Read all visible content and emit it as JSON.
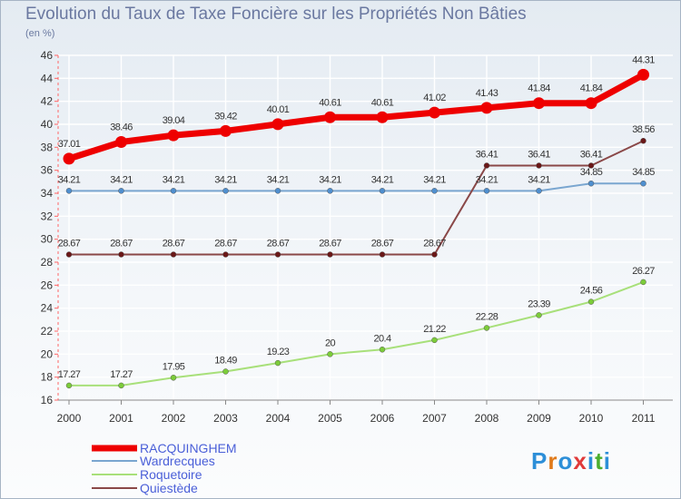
{
  "title": "Evolution du Taux de Taxe Foncière sur les Propriétés Non Bâties",
  "subtitle": "(en %)",
  "logo_text": "Proxiti",
  "chart_data": {
    "type": "line",
    "title": "Evolution du Taux de Taxe Foncière sur les Propriétés Non Bâties",
    "ylabel": "(en %)",
    "xlabel": "",
    "ylim": [
      16,
      46
    ],
    "yticks": [
      16,
      18,
      20,
      22,
      24,
      26,
      28,
      30,
      32,
      34,
      36,
      38,
      40,
      42,
      44,
      46
    ],
    "categories": [
      "2000",
      "2001",
      "2002",
      "2003",
      "2004",
      "2005",
      "2006",
      "2007",
      "2008",
      "2009",
      "2010",
      "2011"
    ],
    "series": [
      {
        "name": "RACQUINGHEM",
        "color": "#ee0000",
        "marker": "#ee0000",
        "width": 7,
        "values": [
          37.01,
          38.46,
          39.04,
          39.42,
          40.01,
          40.61,
          40.61,
          41.02,
          41.43,
          41.84,
          41.84,
          44.31
        ],
        "labels": [
          "37.01",
          "38.46",
          "39.04",
          "39.42",
          "40.01",
          "40.61",
          "40.61",
          "41.02",
          "41.43",
          "41.84",
          "41.84",
          "44.31"
        ]
      },
      {
        "name": "Wardrecques",
        "color": "#7aa6d0",
        "marker": "#4f8fcf",
        "width": 2,
        "values": [
          34.21,
          34.21,
          34.21,
          34.21,
          34.21,
          34.21,
          34.21,
          34.21,
          34.21,
          34.21,
          34.85,
          34.85
        ],
        "labels": [
          "34.21",
          "34.21",
          "34.21",
          "34.21",
          "34.21",
          "34.21",
          "34.21",
          "34.21",
          "34.21",
          "34.21",
          "34.85",
          "34.85"
        ]
      },
      {
        "name": "Roquetoire",
        "color": "#a8e07a",
        "marker": "#7ccc3a",
        "width": 2,
        "values": [
          17.27,
          17.27,
          17.95,
          18.49,
          19.23,
          20,
          20.4,
          21.22,
          22.28,
          23.39,
          24.56,
          26.27
        ],
        "labels": [
          "17.27",
          "17.27",
          "17.95",
          "18.49",
          "19.23",
          "20",
          "20.4",
          "21.22",
          "22.28",
          "23.39",
          "24.56",
          "26.27"
        ]
      },
      {
        "name": "Quiestède",
        "color": "#8a4848",
        "marker": "#6a1818",
        "width": 2,
        "values": [
          28.67,
          28.67,
          28.67,
          28.67,
          28.67,
          28.67,
          28.67,
          28.67,
          36.41,
          36.41,
          36.41,
          38.56
        ],
        "labels": [
          "28.67",
          "28.67",
          "28.67",
          "28.67",
          "28.67",
          "28.67",
          "28.67",
          "28.67",
          "36.41",
          "36.41",
          "36.41",
          "38.56"
        ]
      }
    ],
    "legend": "bottom-left",
    "grid": true
  }
}
